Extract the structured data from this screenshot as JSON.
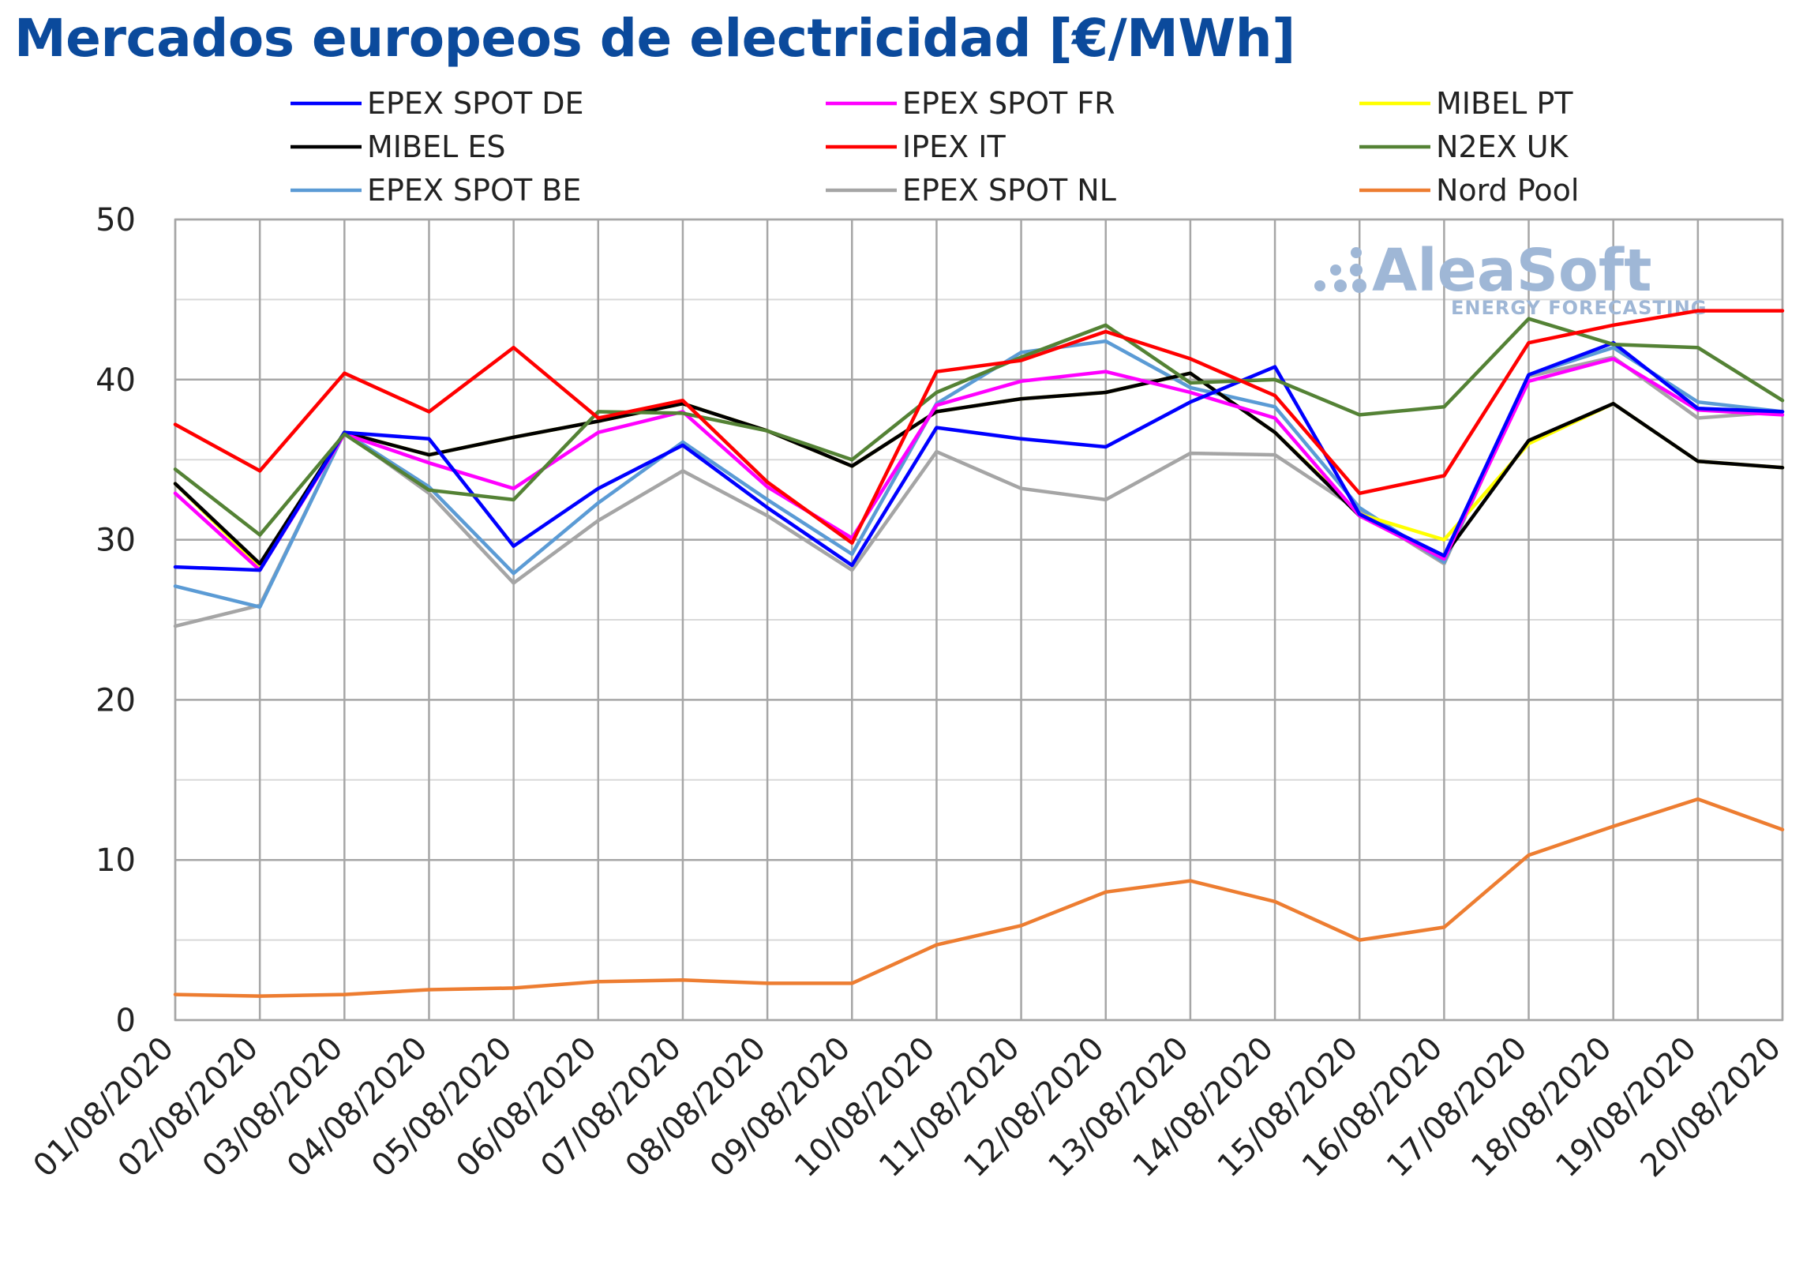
{
  "chart_data": {
    "type": "line",
    "title": "Mercados europeos de electricidad [€/MWh]",
    "xlabel": "",
    "ylabel": "",
    "ylim": [
      0,
      50
    ],
    "yticks": [
      0,
      10,
      20,
      30,
      40,
      50
    ],
    "grid": true,
    "legend_position": "top",
    "categories": [
      "01/08/2020",
      "02/08/2020",
      "03/08/2020",
      "04/08/2020",
      "05/08/2020",
      "06/08/2020",
      "07/08/2020",
      "08/08/2020",
      "09/08/2020",
      "10/08/2020",
      "11/08/2020",
      "12/08/2020",
      "13/08/2020",
      "14/08/2020",
      "15/08/2020",
      "16/08/2020",
      "17/08/2020",
      "18/08/2020",
      "19/08/2020",
      "20/08/2020"
    ],
    "series": [
      {
        "name": "Nord Pool",
        "color": "#ed7d31",
        "values": [
          1.6,
          1.5,
          1.6,
          1.9,
          2.0,
          2.4,
          2.5,
          2.3,
          2.3,
          4.7,
          5.9,
          8.0,
          8.7,
          7.4,
          5.0,
          5.8,
          10.3,
          12.1,
          13.8,
          11.9
        ]
      },
      {
        "name": "EPEX SPOT NL",
        "color": "#a5a5a5",
        "values": [
          24.6,
          25.9,
          36.7,
          32.9,
          27.3,
          31.2,
          34.3,
          31.5,
          28.1,
          35.5,
          33.2,
          32.5,
          35.4,
          35.3,
          31.8,
          28.5,
          40.2,
          41.4,
          37.6,
          38.0
        ]
      },
      {
        "name": "EPEX SPOT BE",
        "color": "#5b9bd5",
        "values": [
          27.1,
          25.8,
          36.7,
          33.3,
          27.9,
          32.3,
          36.1,
          32.5,
          29.1,
          38.5,
          41.7,
          42.4,
          39.5,
          38.3,
          32.0,
          28.6,
          40.3,
          42.0,
          38.6,
          38.0
        ]
      },
      {
        "name": "MIBEL PT",
        "color": "#ffff00",
        "values": [
          33.5,
          28.3,
          36.7,
          35.3,
          36.4,
          37.4,
          38.5,
          36.8,
          34.6,
          38.0,
          38.8,
          39.2,
          40.4,
          36.7,
          31.6,
          30.0,
          36.0,
          38.5,
          34.9,
          34.5
        ]
      },
      {
        "name": "MIBEL ES",
        "color": "#000000",
        "values": [
          33.5,
          28.5,
          36.7,
          35.3,
          36.4,
          37.4,
          38.5,
          36.8,
          34.6,
          38.0,
          38.8,
          39.2,
          40.4,
          36.7,
          31.5,
          29.0,
          36.2,
          38.5,
          34.9,
          34.5
        ]
      },
      {
        "name": "EPEX SPOT FR",
        "color": "#ff00ff",
        "values": [
          32.9,
          28.1,
          36.6,
          34.8,
          33.2,
          36.7,
          38.0,
          33.3,
          30.1,
          38.4,
          39.9,
          40.5,
          39.2,
          37.6,
          31.5,
          28.8,
          39.9,
          41.3,
          38.1,
          37.8
        ]
      },
      {
        "name": "EPEX SPOT DE",
        "color": "#0000ff",
        "values": [
          28.3,
          28.1,
          36.7,
          36.3,
          29.6,
          33.2,
          35.9,
          32.0,
          28.4,
          37.0,
          36.3,
          35.8,
          38.6,
          40.8,
          31.6,
          29.0,
          40.3,
          42.3,
          38.2,
          38.0
        ]
      },
      {
        "name": "N2EX UK",
        "color": "#548235",
        "values": [
          34.4,
          30.3,
          36.6,
          33.1,
          32.5,
          38.0,
          37.9,
          36.8,
          35.0,
          39.2,
          41.4,
          43.4,
          39.8,
          40.0,
          37.8,
          38.3,
          43.8,
          42.2,
          42.0,
          38.7
        ]
      },
      {
        "name": "IPEX IT",
        "color": "#ff0000",
        "values": [
          37.2,
          34.3,
          40.4,
          38.0,
          42.0,
          37.6,
          38.7,
          33.6,
          29.8,
          40.5,
          41.2,
          43.0,
          41.3,
          39.0,
          32.9,
          34.0,
          42.3,
          43.4,
          44.3,
          44.3
        ]
      }
    ],
    "legend": [
      {
        "name": "EPEX SPOT DE",
        "color": "#0000ff"
      },
      {
        "name": "EPEX SPOT FR",
        "color": "#ff00ff"
      },
      {
        "name": "MIBEL PT",
        "color": "#ffff00"
      },
      {
        "name": "MIBEL ES",
        "color": "#000000"
      },
      {
        "name": "IPEX IT",
        "color": "#ff0000"
      },
      {
        "name": "N2EX UK",
        "color": "#548235"
      },
      {
        "name": "EPEX SPOT BE",
        "color": "#5b9bd5"
      },
      {
        "name": "EPEX SPOT NL",
        "color": "#a5a5a5"
      },
      {
        "name": "Nord Pool",
        "color": "#ed7d31"
      }
    ]
  },
  "watermark": {
    "brand": "AleaSoft",
    "tagline": "ENERGY FORECASTING",
    "color": "#9fb7d6"
  }
}
